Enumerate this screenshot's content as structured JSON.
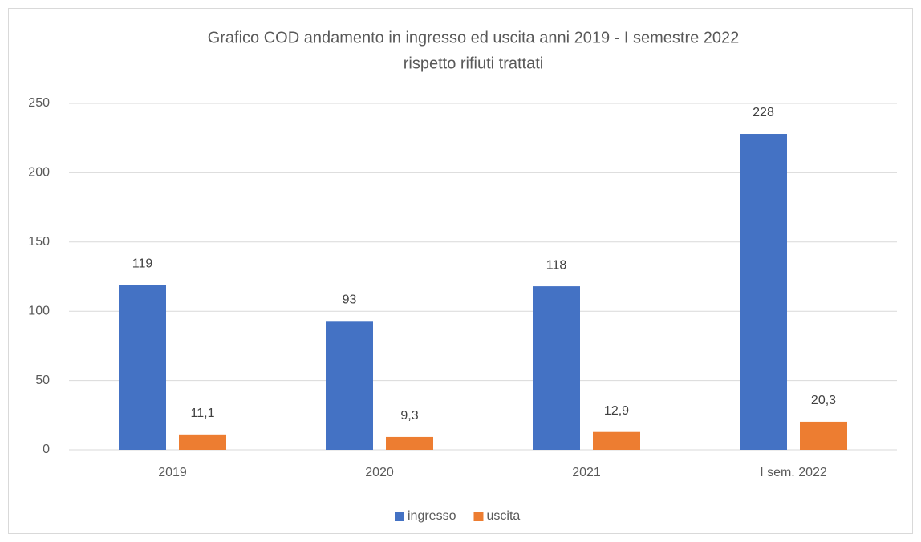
{
  "chart_data": {
    "type": "bar",
    "title": [
      "Grafico COD andamento in ingresso ed uscita anni 2019 - I semestre 2022",
      "rispetto rifiuti trattati"
    ],
    "categories": [
      "2019",
      "2020",
      "2021",
      "I sem. 2022"
    ],
    "series": [
      {
        "name": "ingresso",
        "color": "#4472c4",
        "values": [
          119,
          93,
          118,
          228
        ]
      },
      {
        "name": "uscita",
        "color": "#ed7d31",
        "values": [
          11.1,
          9.3,
          12.9,
          20.3
        ],
        "value_labels": [
          "11,1",
          "9,3",
          "12,9",
          "20,3"
        ]
      }
    ],
    "ylim": [
      0,
      250
    ],
    "yticks": [
      0,
      50,
      100,
      150,
      200,
      250
    ],
    "grid": true,
    "legend": "bottom"
  }
}
